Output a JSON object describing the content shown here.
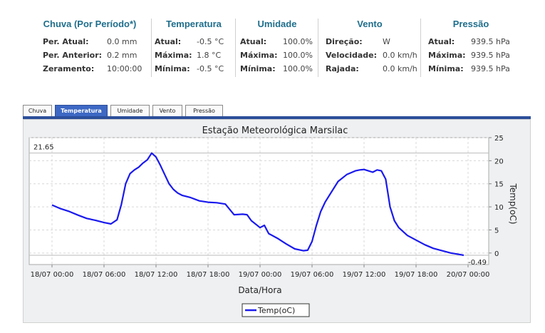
{
  "summary": {
    "chuva": {
      "title": "Chuva (Por Período*)",
      "rows": [
        {
          "label": "Per. Atual:",
          "value": "0.0 mm"
        },
        {
          "label": "Per. Anterior:",
          "value": "0.2 mm"
        },
        {
          "label": "Zeramento:",
          "value": "10:00:00"
        }
      ]
    },
    "temperatura": {
      "title": "Temperatura",
      "rows": [
        {
          "label": "Atual:",
          "value": "-0.5 °C"
        },
        {
          "label": "Máxima:",
          "value": "1.8 °C"
        },
        {
          "label": "Mínima:",
          "value": "-0.5 °C"
        }
      ]
    },
    "umidade": {
      "title": "Umidade",
      "rows": [
        {
          "label": "Atual:",
          "value": "100.0%"
        },
        {
          "label": "Máxima:",
          "value": "100.0%"
        },
        {
          "label": "Mínima:",
          "value": "100.0%"
        }
      ]
    },
    "vento": {
      "title": "Vento",
      "rows": [
        {
          "label": "Direção:",
          "value": "W"
        },
        {
          "label": "Velocidade:",
          "value": "0.0 km/h"
        },
        {
          "label": "Rajada:",
          "value": "0.0 km/h"
        }
      ]
    },
    "pressao": {
      "title": "Pressão",
      "rows": [
        {
          "label": "Atual:",
          "value": "939.5 hPa"
        },
        {
          "label": "Máxima:",
          "value": "939.5 hPa"
        },
        {
          "label": "Mínima:",
          "value": "939.5 hPa"
        }
      ]
    }
  },
  "tabs": [
    {
      "label": "Chuva",
      "active": false
    },
    {
      "label": "Temperatura",
      "active": true
    },
    {
      "label": "Umidade",
      "active": false
    },
    {
      "label": "Vento",
      "active": false
    },
    {
      "label": "Pressão",
      "active": false
    }
  ],
  "chart_data": {
    "type": "line",
    "title": "Estação Meteorológica Marsilac",
    "xlabel": "Data/Hora",
    "ylabel": "Temp(oC)",
    "x_ticks": [
      "18/07 00:00",
      "18/07 06:00",
      "18/07 12:00",
      "18/07 18:00",
      "19/07 00:00",
      "19/07 06:00",
      "19/07 12:00",
      "19/07 18:00",
      "20/07 00:00"
    ],
    "y_ticks": [
      0,
      5,
      10,
      15,
      20,
      25
    ],
    "ylim": [
      -2.5,
      25
    ],
    "xlim_hours": [
      0,
      48
    ],
    "grid": true,
    "legend": "bottom-center",
    "line_color": "#1a1aee",
    "markers": [
      {
        "label": "21.65",
        "value": 21.65
      },
      {
        "label": "-0.49",
        "value": -0.49
      }
    ],
    "series": [
      {
        "name": "Temp(oC)",
        "x_hours": [
          0,
          1,
          2,
          3,
          4,
          5,
          6,
          6.8,
          7.5,
          8,
          8.5,
          9,
          9.5,
          10,
          10.5,
          11,
          11.5,
          12,
          12.5,
          13,
          13.5,
          14,
          14.5,
          15,
          16,
          17,
          18,
          19,
          20,
          21,
          22,
          22.5,
          23,
          24,
          24.5,
          25,
          26,
          27,
          28,
          29,
          29.5,
          30,
          30.5,
          31,
          31.5,
          32,
          33,
          34,
          35,
          35.5,
          36,
          36.5,
          37,
          37.5,
          38,
          38.5,
          39,
          39.5,
          40,
          41,
          42,
          43,
          44,
          45,
          46,
          47,
          47.5
        ],
        "values": [
          10.4,
          9.6,
          9.0,
          8.2,
          7.5,
          7.1,
          6.6,
          6.3,
          7.2,
          10.5,
          15.0,
          17.2,
          18.0,
          18.6,
          19.5,
          20.2,
          21.65,
          20.8,
          19.0,
          17.0,
          15.0,
          13.8,
          13.0,
          12.5,
          12.0,
          11.3,
          11.0,
          10.9,
          10.6,
          8.3,
          8.4,
          8.3,
          7.0,
          5.5,
          6.0,
          4.2,
          3.2,
          2.0,
          0.9,
          0.5,
          0.6,
          2.5,
          6.0,
          9.0,
          11.0,
          12.5,
          15.5,
          17.0,
          17.8,
          18.0,
          18.1,
          17.8,
          17.5,
          18.0,
          17.8,
          16.0,
          10.0,
          7.0,
          5.5,
          3.8,
          2.8,
          1.8,
          1.0,
          0.5,
          0.0,
          -0.3,
          -0.49
        ]
      }
    ]
  }
}
